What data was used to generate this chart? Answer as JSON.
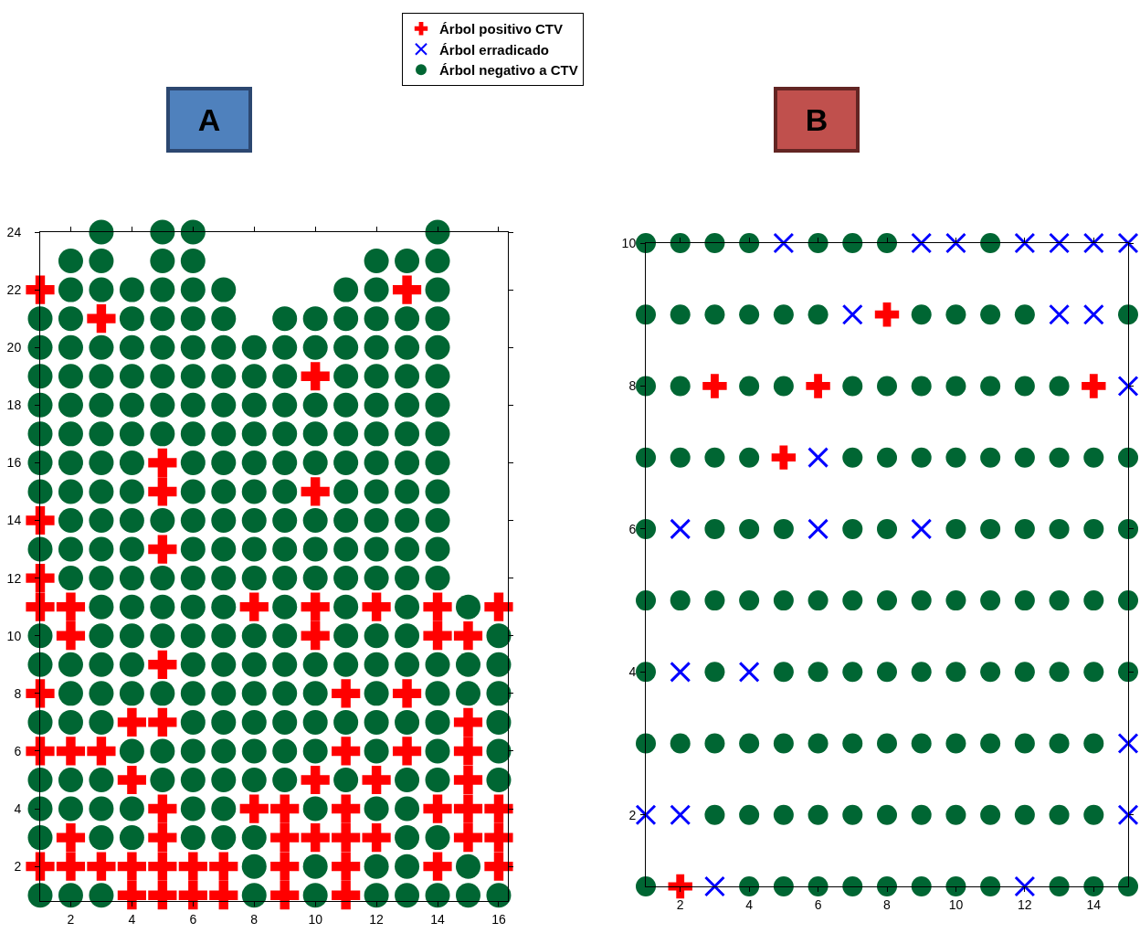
{
  "chart_data": [
    {
      "type": "scatter",
      "title": "A",
      "xlim": [
        1,
        16.3
      ],
      "ylim": [
        0.8,
        24
      ],
      "xticks": [
        2,
        4,
        6,
        8,
        10,
        12,
        14,
        16
      ],
      "yticks": [
        2,
        4,
        6,
        8,
        10,
        12,
        14,
        16,
        18,
        20,
        22,
        24
      ],
      "series": [
        {
          "color": "#ff0000",
          "marker": "cross",
          "x": [
            1,
            13,
            3,
            10,
            5,
            5,
            10,
            1,
            5,
            1,
            1,
            2,
            8,
            10,
            12,
            14,
            16,
            2,
            10,
            14,
            15,
            5,
            1,
            11,
            13,
            4,
            5,
            15,
            1,
            2,
            3,
            11,
            13,
            15,
            4,
            10,
            12,
            15,
            5,
            8,
            9,
            11,
            14,
            15,
            16,
            2,
            5,
            9,
            10,
            11,
            12,
            15,
            16,
            1,
            2,
            3,
            4,
            5,
            6,
            7,
            9,
            11,
            14,
            16,
            4,
            5,
            6,
            7,
            9,
            11
          ],
          "values": [
            22,
            22,
            21,
            19,
            16,
            15,
            15,
            14,
            13,
            12,
            11,
            11,
            11,
            11,
            11,
            11,
            11,
            10,
            10,
            10,
            10,
            9,
            8,
            8,
            8,
            7,
            7,
            7,
            6,
            6,
            6,
            6,
            6,
            6,
            5,
            5,
            5,
            5,
            4,
            4,
            4,
            4,
            4,
            4,
            4,
            3,
            3,
            3,
            3,
            3,
            3,
            3,
            3,
            2,
            2,
            2,
            2,
            2,
            2,
            2,
            2,
            2,
            2,
            2,
            1,
            1,
            1,
            1,
            1,
            1
          ]
        },
        {
          "color": "#006633",
          "marker": "circle",
          "x": [
            3,
            5,
            6,
            14,
            2,
            3,
            5,
            6,
            12,
            13,
            14,
            2,
            3,
            4,
            5,
            6,
            7,
            11,
            12,
            14,
            1,
            2,
            4,
            5,
            6,
            7,
            9,
            10,
            11,
            12,
            13,
            14,
            1,
            2,
            3,
            4,
            5,
            6,
            7,
            8,
            9,
            10,
            11,
            12,
            13,
            14,
            1,
            2,
            3,
            4,
            5,
            6,
            7,
            8,
            9,
            11,
            12,
            13,
            14,
            1,
            2,
            3,
            4,
            5,
            6,
            7,
            8,
            9,
            10,
            11,
            12,
            13,
            14,
            1,
            2,
            3,
            4,
            5,
            6,
            7,
            8,
            9,
            10,
            11,
            12,
            13,
            14,
            1,
            2,
            3,
            4,
            6,
            7,
            8,
            9,
            10,
            11,
            12,
            13,
            14,
            1,
            2,
            3,
            4,
            6,
            7,
            8,
            9,
            11,
            12,
            13,
            14,
            2,
            3,
            4,
            5,
            6,
            7,
            8,
            9,
            10,
            11,
            12,
            13,
            14,
            1,
            2,
            3,
            4,
            6,
            7,
            8,
            9,
            10,
            11,
            12,
            13,
            14,
            2,
            3,
            4,
            5,
            6,
            7,
            8,
            9,
            10,
            11,
            12,
            13,
            14,
            3,
            4,
            5,
            6,
            7,
            9,
            11,
            13,
            15,
            1,
            3,
            4,
            5,
            6,
            7,
            8,
            9,
            11,
            12,
            13,
            16,
            1,
            2,
            3,
            4,
            6,
            7,
            8,
            9,
            10,
            11,
            12,
            13,
            14,
            15,
            16,
            2,
            3,
            4,
            5,
            6,
            7,
            8,
            9,
            10,
            12,
            14,
            15,
            16,
            1,
            2,
            3,
            6,
            7,
            8,
            9,
            10,
            11,
            12,
            13,
            14,
            16,
            4,
            5,
            6,
            7,
            8,
            9,
            10,
            12,
            14,
            16,
            1,
            2,
            3,
            5,
            6,
            7,
            8,
            9,
            11,
            13,
            14,
            16,
            1,
            2,
            3,
            4,
            6,
            7,
            10,
            12,
            13,
            1,
            3,
            4,
            6,
            7,
            8,
            13,
            14,
            8,
            10,
            12,
            13,
            15,
            1,
            2,
            3,
            8,
            10,
            12,
            13,
            14,
            15,
            16
          ],
          "values": [
            24,
            24,
            24,
            24,
            23,
            23,
            23,
            23,
            23,
            23,
            23,
            22,
            22,
            22,
            22,
            22,
            22,
            22,
            22,
            22,
            21,
            21,
            21,
            21,
            21,
            21,
            21,
            21,
            21,
            21,
            21,
            21,
            20,
            20,
            20,
            20,
            20,
            20,
            20,
            20,
            20,
            20,
            20,
            20,
            20,
            20,
            19,
            19,
            19,
            19,
            19,
            19,
            19,
            19,
            19,
            19,
            19,
            19,
            19,
            18,
            18,
            18,
            18,
            18,
            18,
            18,
            18,
            18,
            18,
            18,
            18,
            18,
            18,
            17,
            17,
            17,
            17,
            17,
            17,
            17,
            17,
            17,
            17,
            17,
            17,
            17,
            17,
            16,
            16,
            16,
            16,
            16,
            16,
            16,
            16,
            16,
            16,
            16,
            16,
            16,
            15,
            15,
            15,
            15,
            15,
            15,
            15,
            15,
            15,
            15,
            15,
            15,
            14,
            14,
            14,
            14,
            14,
            14,
            14,
            14,
            14,
            14,
            14,
            14,
            14,
            13,
            13,
            13,
            13,
            13,
            13,
            13,
            13,
            13,
            13,
            13,
            13,
            13,
            12,
            12,
            12,
            12,
            12,
            12,
            12,
            12,
            12,
            12,
            12,
            12,
            12,
            11,
            11,
            11,
            11,
            11,
            11,
            11,
            11,
            11,
            10,
            10,
            10,
            10,
            10,
            10,
            10,
            10,
            10,
            10,
            10,
            10,
            9,
            9,
            9,
            9,
            9,
            9,
            9,
            9,
            9,
            9,
            9,
            9,
            9,
            9,
            9,
            8,
            8,
            8,
            8,
            8,
            8,
            8,
            8,
            8,
            8,
            8,
            8,
            8,
            7,
            7,
            7,
            7,
            7,
            7,
            7,
            7,
            7,
            7,
            7,
            7,
            7,
            6,
            6,
            6,
            6,
            6,
            6,
            6,
            6,
            6,
            6,
            5,
            5,
            5,
            5,
            5,
            5,
            5,
            5,
            5,
            5,
            5,
            5,
            4,
            4,
            4,
            4,
            4,
            4,
            4,
            4,
            4,
            3,
            3,
            3,
            3,
            3,
            3,
            3,
            3,
            2,
            2,
            2,
            2,
            2,
            1,
            1,
            1,
            1,
            1,
            1,
            1,
            1,
            1,
            1
          ]
        }
      ]
    },
    {
      "type": "scatter",
      "title": "B",
      "xlim": [
        1,
        15
      ],
      "ylim": [
        1,
        10
      ],
      "xticks": [
        2,
        4,
        6,
        8,
        10,
        12,
        14
      ],
      "yticks": [
        2,
        4,
        6,
        8,
        10
      ],
      "legend": "top left",
      "series": [
        {
          "name": "Árbol positivo CTV",
          "color": "#ff0000",
          "marker": "cross",
          "x": [
            8,
            3,
            6,
            14,
            5,
            2
          ],
          "values": [
            9,
            8,
            8,
            8,
            7,
            1
          ]
        },
        {
          "name": "Árbol erradicado",
          "color": "#0000ff",
          "marker": "x",
          "x": [
            5,
            9,
            10,
            12,
            13,
            14,
            15,
            7,
            13,
            14,
            15,
            6,
            2,
            6,
            9,
            2,
            4,
            15,
            1,
            2,
            15,
            3,
            12
          ],
          "values": [
            10,
            10,
            10,
            10,
            10,
            10,
            10,
            9,
            9,
            9,
            8,
            7,
            6,
            6,
            6,
            4,
            4,
            3,
            2,
            2,
            2,
            1,
            1
          ]
        },
        {
          "name": "Árbol negativo a CTV",
          "color": "#006633",
          "marker": "circle",
          "x": [
            1,
            2,
            3,
            4,
            6,
            7,
            8,
            11,
            1,
            2,
            3,
            4,
            5,
            6,
            9,
            10,
            11,
            12,
            15,
            1,
            2,
            4,
            5,
            7,
            8,
            9,
            10,
            11,
            12,
            13,
            1,
            2,
            3,
            4,
            7,
            8,
            9,
            10,
            11,
            12,
            13,
            14,
            15,
            1,
            3,
            4,
            5,
            7,
            8,
            10,
            11,
            12,
            13,
            14,
            15,
            1,
            2,
            3,
            4,
            5,
            6,
            7,
            8,
            9,
            10,
            11,
            12,
            13,
            14,
            15,
            1,
            3,
            5,
            6,
            7,
            8,
            9,
            10,
            11,
            12,
            13,
            14,
            15,
            1,
            2,
            3,
            4,
            5,
            6,
            7,
            8,
            9,
            10,
            11,
            12,
            13,
            14,
            3,
            4,
            5,
            6,
            7,
            8,
            9,
            10,
            11,
            12,
            13,
            14,
            1,
            4,
            5,
            6,
            7,
            8,
            9,
            10,
            11,
            13,
            14,
            15
          ],
          "values": [
            10,
            10,
            10,
            10,
            10,
            10,
            10,
            10,
            9,
            9,
            9,
            9,
            9,
            9,
            9,
            9,
            9,
            9,
            9,
            8,
            8,
            8,
            8,
            8,
            8,
            8,
            8,
            8,
            8,
            8,
            7,
            7,
            7,
            7,
            7,
            7,
            7,
            7,
            7,
            7,
            7,
            7,
            7,
            6,
            6,
            6,
            6,
            6,
            6,
            6,
            6,
            6,
            6,
            6,
            6,
            5,
            5,
            5,
            5,
            5,
            5,
            5,
            5,
            5,
            5,
            5,
            5,
            5,
            5,
            5,
            4,
            4,
            4,
            4,
            4,
            4,
            4,
            4,
            4,
            4,
            4,
            4,
            4,
            3,
            3,
            3,
            3,
            3,
            3,
            3,
            3,
            3,
            3,
            3,
            3,
            3,
            3,
            2,
            2,
            2,
            2,
            2,
            2,
            2,
            2,
            2,
            2,
            2,
            2,
            1,
            1,
            1,
            1,
            1,
            1,
            1,
            1,
            1,
            1,
            1,
            1
          ]
        }
      ]
    }
  ]
}
